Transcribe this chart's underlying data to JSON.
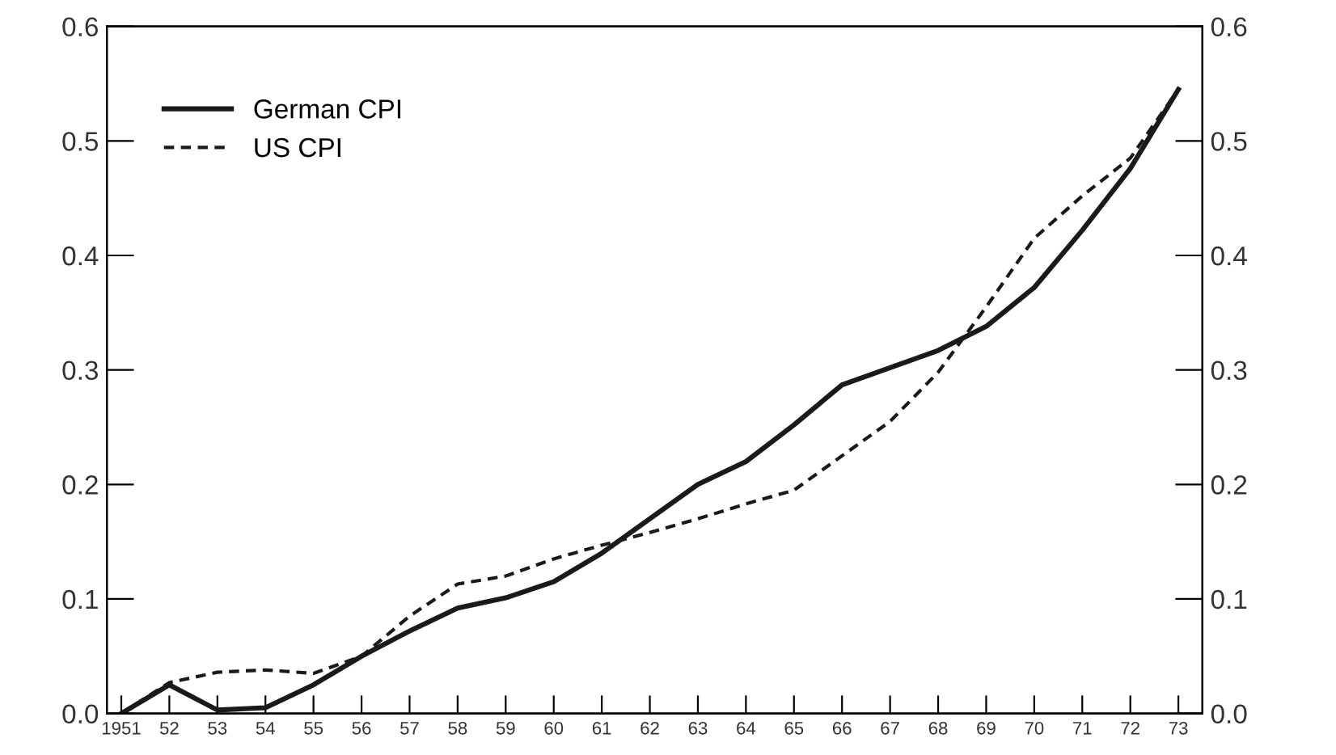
{
  "chart_data": {
    "type": "line",
    "categories": [
      "1951",
      "52",
      "53",
      "54",
      "55",
      "56",
      "57",
      "58",
      "59",
      "60",
      "61",
      "62",
      "63",
      "64",
      "65",
      "66",
      "67",
      "68",
      "69",
      "70",
      "71",
      "72",
      "73"
    ],
    "series": [
      {
        "name": "German CPI",
        "color": "#1a1a1a",
        "line_style": "solid",
        "values": [
          0,
          0.025,
          0.003,
          0.005,
          0.025,
          0.05,
          0.072,
          0.092,
          0.101,
          0.115,
          0.14,
          0.17,
          0.2,
          0.22,
          0.252,
          0.287,
          0.302,
          0.317,
          0.338,
          0.372,
          0.422,
          0.476,
          0.545
        ]
      },
      {
        "name": "US CPI",
        "color": "#1a1a1a",
        "line_style": "dashed",
        "values": [
          0,
          0.027,
          0.036,
          0.038,
          0.035,
          0.05,
          0.085,
          0.113,
          0.12,
          0.135,
          0.147,
          0.158,
          0.17,
          0.183,
          0.195,
          0.225,
          0.255,
          0.298,
          0.355,
          0.415,
          0.452,
          0.485,
          0.545
        ]
      }
    ],
    "ylim": [
      0,
      0.6
    ],
    "yticks": [
      {
        "value": 0,
        "label": "0.0"
      },
      0.1,
      0.2,
      0.3,
      0.4,
      0.5,
      0.6
    ],
    "y2lim": [
      0,
      0.6
    ],
    "y2ticks": [
      {
        "value": 0,
        "label": "0.0"
      },
      0.1,
      0.2,
      0.3,
      0.4,
      0.5,
      0.6
    ],
    "grid": false,
    "legend": "top left",
    "marker": "none"
  }
}
